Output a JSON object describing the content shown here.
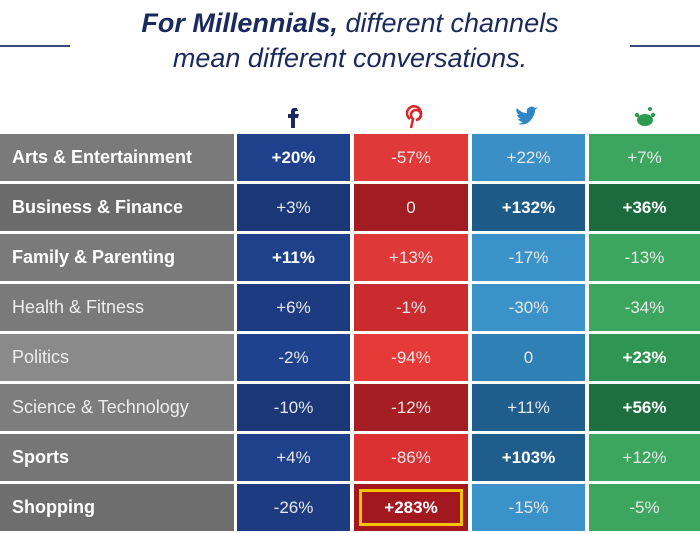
{
  "header": {
    "title_bold": "For Millennials,",
    "title_line1": "different channels",
    "title_line2": "mean different conversations."
  },
  "table": {
    "label_fills": [
      "#7a7a7a",
      "#6b6b6b",
      "#7a7a7a",
      "#7a7a7a",
      "#8a8a8a",
      "#7d7d7d",
      "#767676",
      "#6e6e6e"
    ],
    "rows": [
      {
        "label": "Arts & Entertainment",
        "label_bold": true,
        "cells": [
          {
            "text": "+20%",
            "bold": true,
            "fill": "#1f418c"
          },
          {
            "text": "-57%",
            "bold": false,
            "fill": "#e0393a"
          },
          {
            "text": "+22%",
            "bold": false,
            "fill": "#3a8fc7"
          },
          {
            "text": "+7%",
            "bold": false,
            "fill": "#3da65e"
          }
        ]
      },
      {
        "label": "Business & Finance",
        "label_bold": true,
        "cells": [
          {
            "text": "+3%",
            "bold": false,
            "fill": "#1a3878"
          },
          {
            "text": "0",
            "bold": false,
            "fill": "#a11d22"
          },
          {
            "text": "+132%",
            "bold": true,
            "fill": "#1d5a88"
          },
          {
            "text": "+36%",
            "bold": true,
            "fill": "#1b6b3e"
          }
        ]
      },
      {
        "label": "Family & Parenting",
        "label_bold": true,
        "cells": [
          {
            "text": "+11%",
            "bold": true,
            "fill": "#1f418c"
          },
          {
            "text": "+13%",
            "bold": false,
            "fill": "#df3838"
          },
          {
            "text": "-17%",
            "bold": false,
            "fill": "#3b92c9"
          },
          {
            "text": "-13%",
            "bold": false,
            "fill": "#3da65e"
          }
        ]
      },
      {
        "label": "Health & Fitness",
        "label_bold": false,
        "cells": [
          {
            "text": "+6%",
            "bold": false,
            "fill": "#1c3b80"
          },
          {
            "text": "-1%",
            "bold": false,
            "fill": "#c92b2e"
          },
          {
            "text": "-30%",
            "bold": false,
            "fill": "#3b92c9"
          },
          {
            "text": "-34%",
            "bold": false,
            "fill": "#3da65e"
          }
        ]
      },
      {
        "label": "Politics",
        "label_bold": false,
        "cells": [
          {
            "text": "-2%",
            "bold": false,
            "fill": "#1f428e"
          },
          {
            "text": "-94%",
            "bold": false,
            "fill": "#e53a37"
          },
          {
            "text": "0",
            "bold": false,
            "fill": "#2f80b5"
          },
          {
            "text": "+23%",
            "bold": true,
            "fill": "#2f9552"
          }
        ]
      },
      {
        "label": "Science & Technology",
        "label_bold": false,
        "cells": [
          {
            "text": "-10%",
            "bold": false,
            "fill": "#1a3878"
          },
          {
            "text": "-12%",
            "bold": false,
            "fill": "#a51e23"
          },
          {
            "text": "+11%",
            "bold": false,
            "fill": "#1f5e8c"
          },
          {
            "text": "+56%",
            "bold": true,
            "fill": "#1d6e40"
          }
        ]
      },
      {
        "label": "Sports",
        "label_bold": true,
        "cells": [
          {
            "text": "+4%",
            "bold": false,
            "fill": "#1f418c"
          },
          {
            "text": "-86%",
            "bold": false,
            "fill": "#da3133"
          },
          {
            "text": "+103%",
            "bold": true,
            "fill": "#1f5e8c"
          },
          {
            "text": "+12%",
            "bold": false,
            "fill": "#3da65e"
          }
        ]
      },
      {
        "label": "Shopping",
        "label_bold": true,
        "cells": [
          {
            "text": "-26%",
            "bold": false,
            "fill": "#1c3b80"
          },
          {
            "text": "+283%",
            "bold": true,
            "fill": "#a3171f",
            "highlight": true
          },
          {
            "text": "-15%",
            "bold": false,
            "fill": "#3b92c9"
          },
          {
            "text": "-5%",
            "bold": false,
            "fill": "#3da65e"
          }
        ]
      }
    ]
  }
}
